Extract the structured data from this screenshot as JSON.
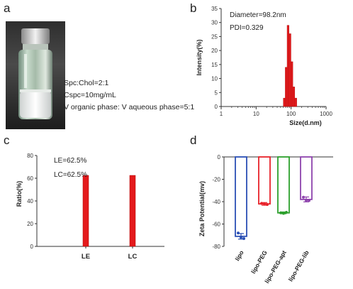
{
  "panels": {
    "a": {
      "label": "a",
      "notes": [
        "Spc:Chol=2:1",
        "Cspc=10mg/mL",
        "V organic phase: V aqueous phase=5:1"
      ]
    },
    "b": {
      "label": "b"
    },
    "c": {
      "label": "c"
    },
    "d": {
      "label": "d"
    }
  },
  "colors": {
    "red_bar": "#e41a1c",
    "blue": "#2a4fb5",
    "red": "#e8222a",
    "green": "#2ca02c",
    "purple": "#8e44ad"
  },
  "chart_data": [
    {
      "id": "b",
      "type": "bar",
      "xscale": "log",
      "xlabel": "Size(d.nm)",
      "ylabel": "Intensity(%)",
      "xlim": [
        1,
        1000
      ],
      "ylim": [
        0,
        35
      ],
      "xticks": [
        "1",
        "10",
        "100",
        "1000"
      ],
      "yticks": [
        "0",
        "5",
        "10",
        "15",
        "20",
        "25",
        "30",
        "35"
      ],
      "annotations": [
        "Diameter=98.2nm",
        "PDI=0.329"
      ],
      "bins": [
        {
          "x0": 60,
          "x1": 68,
          "value": 3
        },
        {
          "x0": 68,
          "x1": 77,
          "value": 14
        },
        {
          "x0": 77,
          "x1": 87,
          "value": 29
        },
        {
          "x0": 87,
          "x1": 99,
          "value": 26
        },
        {
          "x0": 99,
          "x1": 112,
          "value": 16
        },
        {
          "x0": 112,
          "x1": 127,
          "value": 7
        },
        {
          "x0": 127,
          "x1": 145,
          "value": 3
        }
      ]
    },
    {
      "id": "c",
      "type": "bar",
      "ylabel": "Ratio(%)",
      "ylim": [
        0,
        80
      ],
      "yticks": [
        "0",
        "20",
        "40",
        "60",
        "80"
      ],
      "categories": [
        "LE",
        "LC"
      ],
      "values": [
        62.5,
        62.5
      ],
      "annotations": [
        "LE=62.5%",
        "LC=62.5%"
      ]
    },
    {
      "id": "d",
      "type": "bar",
      "ylabel": "Zeta Potential(mv)",
      "ylim": [
        -80,
        0
      ],
      "yticks": [
        "0",
        "-20",
        "-40",
        "-60",
        "-80"
      ],
      "categories": [
        "lipo",
        "lipo-PEG",
        "lipo-PEG-apt",
        "lipo-PEG-lib"
      ],
      "values": [
        -71,
        -42,
        -50,
        -38
      ],
      "errors": [
        2.5,
        1.2,
        0.8,
        2.2
      ],
      "points": [
        [
          -68,
          -72,
          -73
        ],
        [
          -41.5,
          -42,
          -42.5
        ],
        [
          -50,
          -50.5,
          -49.5
        ],
        [
          -36,
          -39,
          -39
        ]
      ],
      "colors": [
        "#2a4fb5",
        "#e8222a",
        "#2ca02c",
        "#8e44ad"
      ]
    }
  ]
}
